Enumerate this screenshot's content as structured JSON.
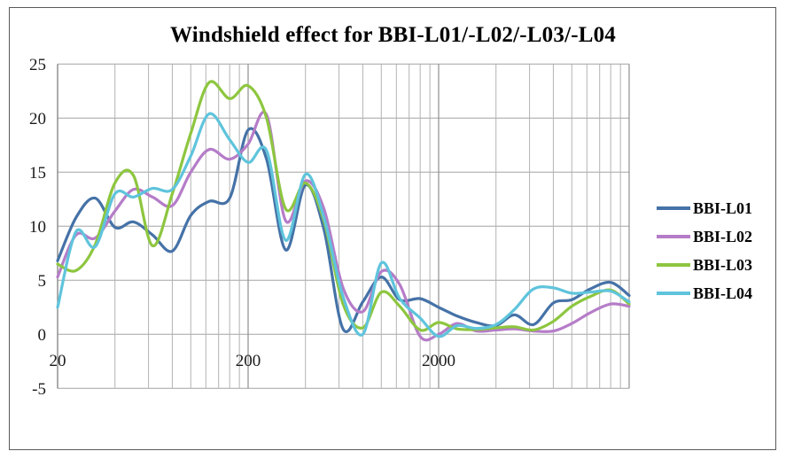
{
  "title": "Windshield effect for BBI-L01/-L02/-L03/-L04",
  "chart_data": {
    "type": "line",
    "title": "Windshield effect for BBI-L01/-L02/-L03/-L04",
    "grid": true,
    "legend_position": "right",
    "line_style": "smooth",
    "x_axis": {
      "scale": "log10",
      "min": 20,
      "max": 20000,
      "unit": "Hz",
      "tick_labels": [
        "20",
        "200",
        "2000"
      ],
      "tick_values": [
        20,
        200,
        2000
      ],
      "minor_gridlines": "multiples of 20, 200 and 2000 Hz",
      "major_gridlines": [
        200,
        2000,
        20000
      ]
    },
    "y_axis": {
      "min": -5,
      "max": 25,
      "step": 5,
      "tick_labels": [
        "25",
        "20",
        "15",
        "10",
        "5",
        "0",
        "-5"
      ],
      "tick_values": [
        25,
        20,
        15,
        10,
        5,
        0,
        -5
      ]
    },
    "frequencies_hz": [
      20,
      25,
      31.5,
      40,
      50,
      63,
      80,
      100,
      125,
      160,
      200,
      250,
      315,
      400,
      500,
      630,
      800,
      1000,
      1250,
      1600,
      2000,
      2500,
      3150,
      4000,
      5000,
      6300,
      8000,
      10000,
      12500,
      16000,
      20000
    ],
    "series": [
      {
        "name": "BBI-L01",
        "color": "#4572A7",
        "values": [
          6.8,
          10.8,
          12.6,
          9.9,
          10.4,
          9.2,
          7.7,
          11.0,
          12.3,
          12.6,
          18.9,
          16.2,
          7.8,
          13.8,
          9.7,
          0.5,
          3.0,
          5.3,
          3.2,
          3.3,
          2.5,
          1.7,
          1.1,
          0.8,
          1.8,
          0.9,
          2.9,
          3.2,
          4.2,
          4.8,
          3.6
        ]
      },
      {
        "name": "BBI-L02",
        "color": "#B57CC8",
        "values": [
          5.3,
          9.2,
          8.9,
          11.4,
          13.4,
          12.7,
          11.9,
          15.0,
          17.1,
          16.2,
          17.6,
          20.3,
          10.5,
          14.2,
          11.6,
          4.3,
          2.1,
          5.8,
          4.6,
          -0.2,
          0.0,
          1.0,
          0.3,
          0.4,
          0.5,
          0.3,
          0.3,
          1.0,
          2.0,
          2.8,
          2.6
        ]
      },
      {
        "name": "BBI-L03",
        "color": "#8DC63F",
        "values": [
          6.5,
          5.9,
          8.3,
          14.0,
          14.7,
          8.2,
          13.0,
          18.6,
          23.3,
          21.8,
          23.0,
          20.0,
          11.6,
          14.0,
          10.5,
          2.8,
          0.6,
          3.9,
          2.6,
          0.4,
          1.1,
          0.5,
          0.45,
          0.6,
          0.7,
          0.4,
          1.2,
          2.6,
          3.5,
          4.1,
          2.8
        ]
      },
      {
        "name": "BBI-L04",
        "color": "#5FC4DC",
        "values": [
          2.5,
          9.5,
          8.1,
          13.0,
          12.7,
          13.5,
          13.4,
          16.5,
          20.4,
          18.0,
          15.9,
          17.0,
          8.7,
          14.8,
          10.8,
          3.5,
          0.0,
          6.6,
          3.3,
          1.5,
          -0.2,
          0.8,
          0.55,
          0.9,
          2.3,
          4.2,
          4.3,
          3.8,
          3.9,
          4.0,
          3.0
        ]
      }
    ]
  },
  "colors": {
    "minor_gridline": "#b3b3b3",
    "major_gridline": "#8f8f8f",
    "horizontal_gridline": "#a3a3a3",
    "axis_line": "#808080",
    "tick_label": "#1a1a1a",
    "frame_border": "#5a5a5a"
  }
}
